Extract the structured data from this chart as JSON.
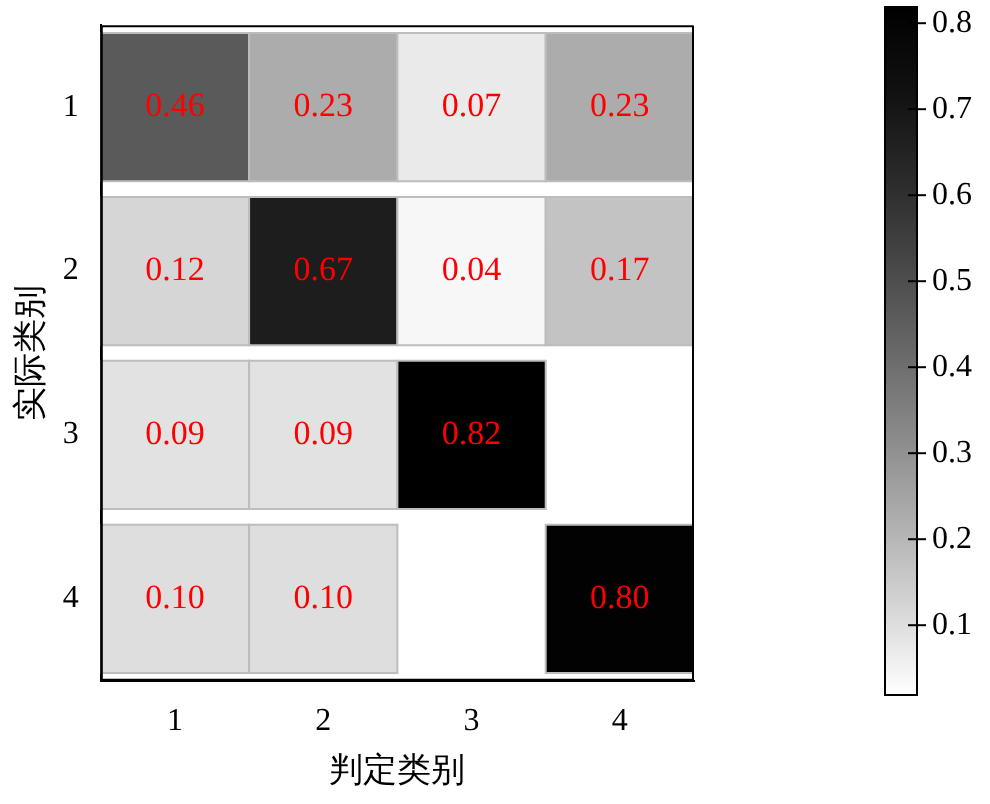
{
  "chart_data": {
    "type": "heatmap",
    "xlabel": "判定类别",
    "ylabel": "实际类别",
    "categories": [
      "1",
      "2",
      "3",
      "4"
    ],
    "y_categories": [
      "1",
      "2",
      "3",
      "4"
    ],
    "cells": [
      [
        0.46,
        0.23,
        0.07,
        0.23
      ],
      [
        0.12,
        0.67,
        0.04,
        0.17
      ],
      [
        0.09,
        0.09,
        0.82,
        null
      ],
      [
        0.1,
        0.1,
        null,
        0.8
      ]
    ],
    "cell_labels": [
      [
        "0.46",
        "0.23",
        "0.07",
        "0.23"
      ],
      [
        "0.12",
        "0.67",
        "0.04",
        "0.17"
      ],
      [
        "0.09",
        "0.09",
        "0.82",
        null
      ],
      [
        "0.10",
        "0.10",
        null,
        "0.80"
      ]
    ],
    "clim": [
      0.02,
      0.82
    ],
    "cticks": [
      0.1,
      0.2,
      0.3,
      0.4,
      0.5,
      0.6,
      0.7,
      0.8
    ]
  }
}
